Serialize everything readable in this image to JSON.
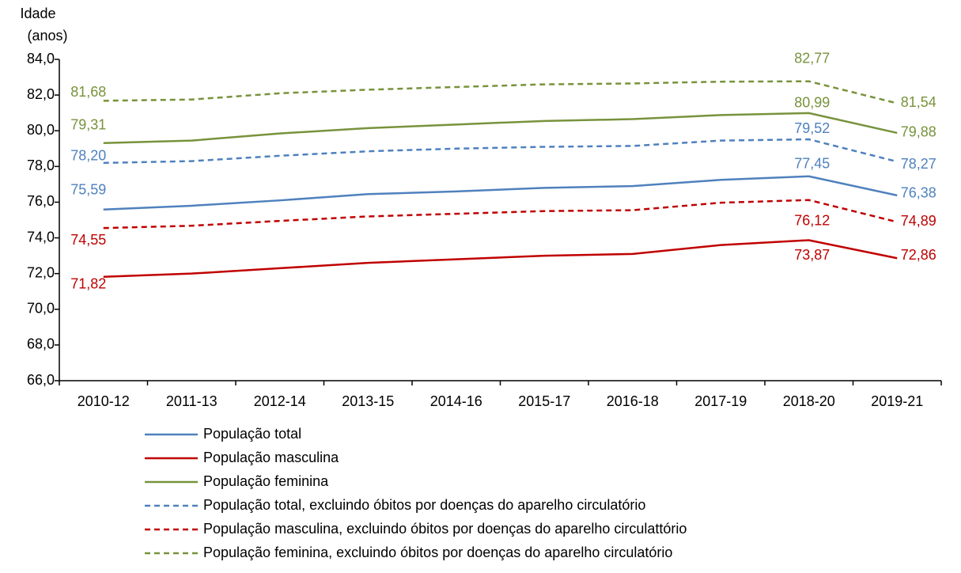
{
  "chart_data": {
    "type": "line",
    "y_label_lines": [
      "Idade",
      "(anos)"
    ],
    "categories": [
      "2010-12",
      "2011-13",
      "2012-14",
      "2013-15",
      "2014-16",
      "2015-17",
      "2016-18",
      "2017-19",
      "2018-20",
      "2019-21"
    ],
    "ylim": [
      66,
      84
    ],
    "yticks": [
      {
        "value": 66,
        "label": "66,0"
      },
      {
        "value": 68,
        "label": "68,0"
      },
      {
        "value": 70,
        "label": "70,0"
      },
      {
        "value": 72,
        "label": "72,0"
      },
      {
        "value": 74,
        "label": "74,0"
      },
      {
        "value": 76,
        "label": "76,0"
      },
      {
        "value": 78,
        "label": "78,0"
      },
      {
        "value": 80,
        "label": "80,0"
      },
      {
        "value": 82,
        "label": "82,0"
      },
      {
        "value": 84,
        "label": "84,0"
      }
    ],
    "series": [
      {
        "name": "População total",
        "color": "#4f81bd",
        "dashed": false,
        "values": [
          75.59,
          75.8,
          76.1,
          76.45,
          76.6,
          76.8,
          76.9,
          77.25,
          77.45,
          76.38
        ],
        "value_labels": [
          "75,59",
          null,
          null,
          null,
          null,
          null,
          null,
          null,
          "77,45",
          "76,38"
        ]
      },
      {
        "name": "População masculina",
        "color": "#c00000",
        "dashed": false,
        "values": [
          71.82,
          72.0,
          72.3,
          72.6,
          72.8,
          73.0,
          73.1,
          73.6,
          73.87,
          72.86
        ],
        "value_labels": [
          "71,82",
          null,
          null,
          null,
          null,
          null,
          null,
          null,
          "73,87",
          "72,86"
        ]
      },
      {
        "name": "População feminina",
        "color": "#77933c",
        "dashed": false,
        "values": [
          79.31,
          79.45,
          79.85,
          80.15,
          80.35,
          80.55,
          80.65,
          80.88,
          80.99,
          79.88
        ],
        "value_labels": [
          "79,31",
          null,
          null,
          null,
          null,
          null,
          null,
          null,
          "80,99",
          "79,88"
        ]
      },
      {
        "name": "População total, excluindo óbitos por doenças do aparelho circulatório",
        "color": "#4f81bd",
        "dashed": true,
        "values": [
          78.2,
          78.3,
          78.6,
          78.85,
          79.0,
          79.1,
          79.15,
          79.45,
          79.52,
          78.27
        ],
        "value_labels": [
          "78,20",
          null,
          null,
          null,
          null,
          null,
          null,
          null,
          "79,52",
          "78,27"
        ]
      },
      {
        "name": "População masculina, excluindo óbitos por doenças do aparelho circulattório",
        "color": "#c00000",
        "dashed": true,
        "values": [
          74.55,
          74.68,
          74.95,
          75.2,
          75.35,
          75.5,
          75.55,
          75.97,
          76.12,
          74.89
        ],
        "value_labels": [
          "74,55",
          null,
          null,
          null,
          null,
          null,
          null,
          null,
          "76,12",
          "74,89"
        ]
      },
      {
        "name": "População feminina, excluindo óbitos por doenças do aparelho circulatório",
        "color": "#77933c",
        "dashed": true,
        "values": [
          81.68,
          81.75,
          82.1,
          82.3,
          82.45,
          82.6,
          82.65,
          82.75,
          82.77,
          81.54
        ],
        "value_labels": [
          "81,68",
          null,
          null,
          null,
          null,
          null,
          null,
          null,
          "82,77",
          "81,54"
        ]
      }
    ]
  }
}
